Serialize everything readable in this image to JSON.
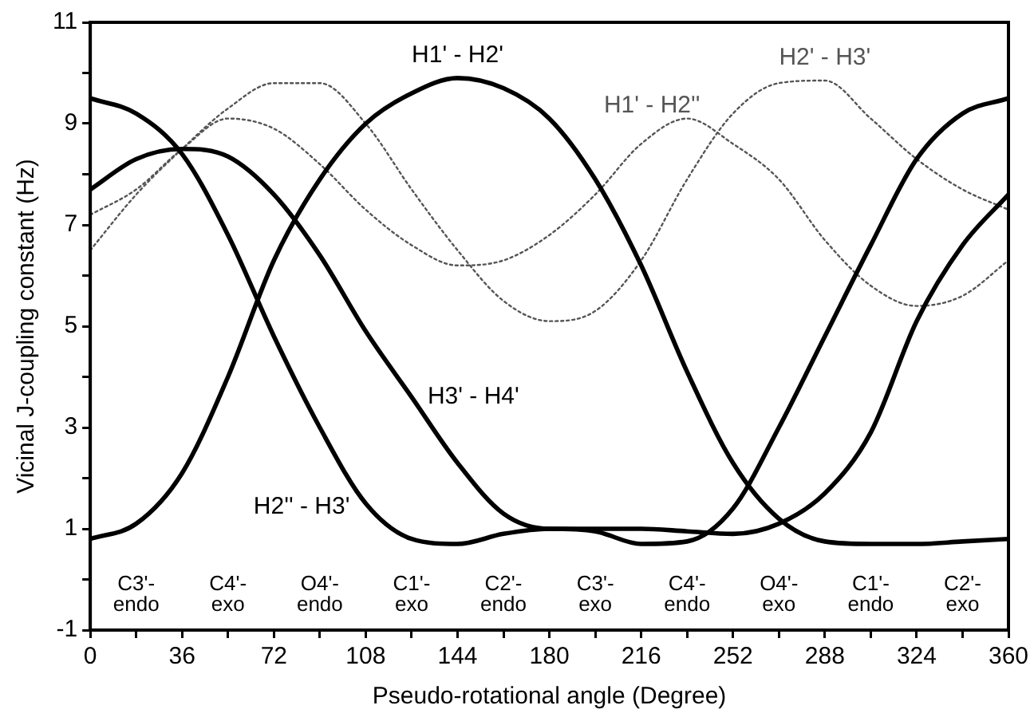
{
  "chart_data": {
    "type": "line",
    "xlabel": "Pseudo-rotational angle (Degree)",
    "ylabel": "Vicinal J-coupling constant (Hz)",
    "x": [
      0,
      18,
      36,
      54,
      72,
      90,
      108,
      126,
      144,
      162,
      180,
      198,
      216,
      234,
      252,
      270,
      288,
      306,
      324,
      342,
      360
    ],
    "series": [
      {
        "name": "H2'' - H3'",
        "color": "#000000",
        "line_style": "solid",
        "values": [
          9.5,
          9.2,
          8.4,
          6.8,
          4.8,
          3.0,
          1.5,
          0.8,
          0.7,
          0.9,
          1.0,
          0.95,
          0.7,
          0.75,
          1.4,
          3.0,
          4.8,
          6.6,
          8.3,
          9.2,
          9.5
        ]
      },
      {
        "name": "H3' - H4'",
        "color": "#000000",
        "line_style": "solid",
        "values": [
          7.7,
          8.3,
          8.5,
          8.35,
          7.6,
          6.4,
          4.9,
          3.6,
          2.3,
          1.3,
          1.0,
          1.0,
          1.0,
          0.95,
          0.9,
          1.1,
          1.7,
          2.9,
          5.1,
          6.6,
          7.6
        ]
      },
      {
        "name": "H1' - H2'",
        "color": "#000000",
        "line_style": "solid",
        "values": [
          0.8,
          1.1,
          2.1,
          4.0,
          6.3,
          7.9,
          9.0,
          9.6,
          9.9,
          9.7,
          9.1,
          7.9,
          6.2,
          4.1,
          2.3,
          1.2,
          0.75,
          0.7,
          0.7,
          0.75,
          0.8
        ]
      },
      {
        "name": "H2' - H3'",
        "color": "#555555",
        "line_style": "dotted",
        "values": [
          6.5,
          7.6,
          8.5,
          9.3,
          9.8,
          9.8,
          9.0,
          7.7,
          6.5,
          5.5,
          5.1,
          5.3,
          6.3,
          7.9,
          9.2,
          9.8,
          9.85,
          9.1,
          8.3,
          7.7,
          7.3
        ]
      },
      {
        "name": "H1' - H2''",
        "color": "#555555",
        "line_style": "dotted",
        "values": [
          7.2,
          7.7,
          8.5,
          9.1,
          8.9,
          8.2,
          7.3,
          6.6,
          6.2,
          6.3,
          6.8,
          7.6,
          8.6,
          9.1,
          8.6,
          7.9,
          6.7,
          5.8,
          5.4,
          5.6,
          6.3
        ]
      }
    ],
    "xlim": [
      0,
      360
    ],
    "xticks": [
      0,
      {
        "value": 18,
        "label": null
      },
      36,
      {
        "value": 54,
        "label": null
      },
      72,
      {
        "value": 90,
        "label": null
      },
      108,
      {
        "value": 126,
        "label": null
      },
      144,
      {
        "value": 162,
        "label": null
      },
      180,
      {
        "value": 198,
        "label": null
      },
      216,
      {
        "value": 234,
        "label": null
      },
      252,
      {
        "value": 270,
        "label": null
      },
      288,
      {
        "value": 306,
        "label": null
      },
      324,
      {
        "value": 342,
        "label": null
      },
      360
    ],
    "ylim": [
      -1,
      11
    ],
    "yticks": [
      -1,
      {
        "value": 0,
        "label": null
      },
      1,
      {
        "value": 2,
        "label": null
      },
      3,
      {
        "value": 4,
        "label": null
      },
      5,
      {
        "value": 6,
        "label": null
      },
      7,
      {
        "value": 8,
        "label": null
      },
      9,
      {
        "value": 10,
        "label": null
      },
      11
    ],
    "grid": false,
    "legend": false,
    "marker": "none",
    "annotations": [
      "C3'-\nendo",
      "C4'-\nexo",
      "O4'-\nendo",
      "C1'-\nexo",
      "C2'-\nendo",
      "C3'-\nexo",
      "C4'-\nendo",
      "O4'-\nexo",
      "C1'-\nendo",
      "C2'-\nexo"
    ]
  }
}
